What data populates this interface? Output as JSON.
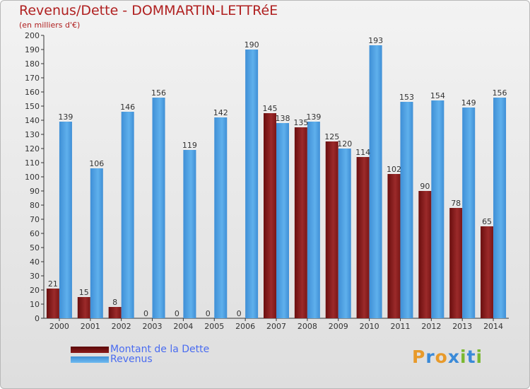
{
  "chart_data": {
    "type": "bar",
    "title": "Revenus/Dette - DOMMARTIN-LETTRéE",
    "subtitle": "(en milliers d'€)",
    "categories": [
      "2000",
      "2001",
      "2002",
      "2003",
      "2004",
      "2005",
      "2006",
      "2007",
      "2008",
      "2009",
      "2010",
      "2011",
      "2012",
      "2013",
      "2014"
    ],
    "series": [
      {
        "name": "Montant de la Dette",
        "color": "#8b1a1a",
        "values": [
          21,
          15,
          8,
          0,
          0,
          0,
          0,
          145,
          135,
          125,
          114,
          102,
          90,
          78,
          65
        ]
      },
      {
        "name": "Revenus",
        "color": "#4da0e0",
        "values": [
          139,
          106,
          146,
          156,
          119,
          142,
          190,
          138,
          139,
          120,
          193,
          153,
          154,
          149,
          156
        ]
      }
    ],
    "ylim": [
      0,
      200
    ],
    "yticks": [
      0,
      10,
      20,
      30,
      40,
      50,
      60,
      70,
      80,
      90,
      100,
      110,
      120,
      130,
      140,
      150,
      160,
      170,
      180,
      190,
      200
    ],
    "grid": false,
    "legend_position": "bottom-left"
  },
  "legend": {
    "items": [
      {
        "label": "Montant de la Dette",
        "color": "#8b1a1a"
      },
      {
        "label": "Revenus",
        "color": "#4da0e0"
      }
    ]
  },
  "logo": {
    "letters": [
      "P",
      "r",
      "o",
      "x",
      "i",
      "t",
      "i"
    ],
    "colors": [
      "#e89a2a",
      "#3a8ad8",
      "#e89a2a",
      "#3a8ad8",
      "#7ab830",
      "#3a8ad8",
      "#7ab830"
    ]
  }
}
